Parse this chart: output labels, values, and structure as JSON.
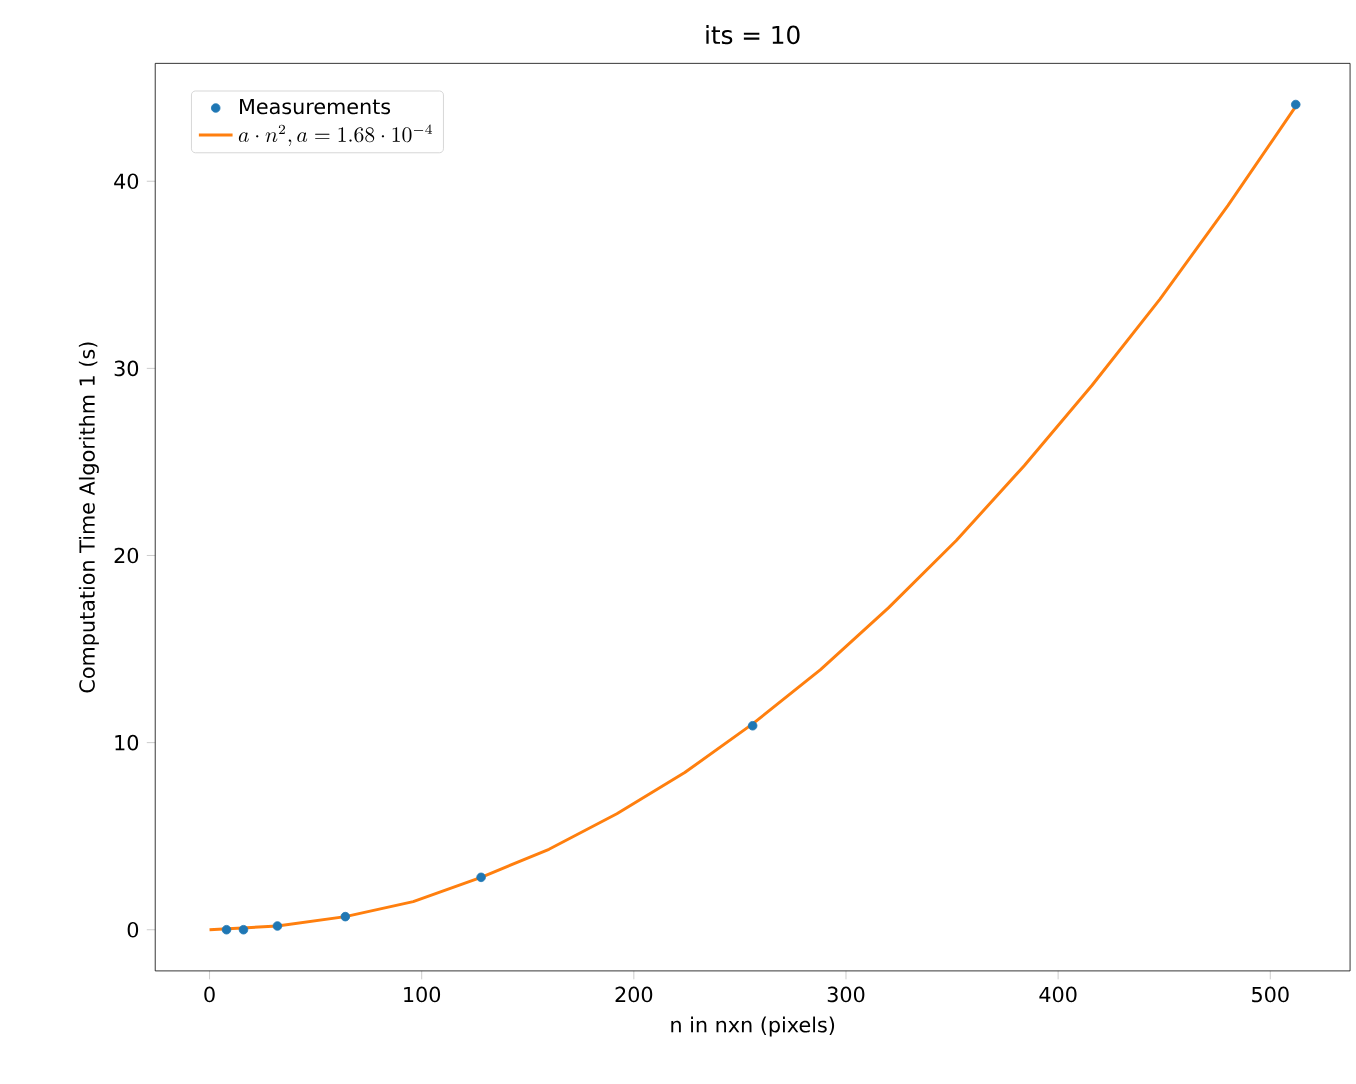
{
  "chart_data": {
    "type": "scatter",
    "title": "its = 10",
    "xlabel": "n in nxn (pixels)",
    "ylabel": "Computation Time Algorithm 1 (s)",
    "x": [
      8,
      16,
      32,
      64,
      128,
      256,
      512
    ],
    "series": [
      {
        "name": "Measurements",
        "color": "#1f77b4",
        "marker": "circle",
        "values": [
          0.0,
          0.0,
          0.2,
          0.7,
          2.8,
          10.9,
          44.1
        ]
      },
      {
        "name": "a\\cdot n^2, a = 1.68\\cdot 10^{-4}",
        "type": "line",
        "color": "#ff7f0e",
        "x": [
          0,
          32,
          64,
          96,
          128,
          160,
          192,
          224,
          256,
          288,
          320,
          352,
          384,
          416,
          448,
          480,
          512
        ],
        "values": [
          0,
          0.2,
          0.7,
          1.5,
          2.8,
          4.3,
          6.2,
          8.4,
          11.0,
          13.9,
          17.2,
          20.8,
          24.8,
          29.1,
          33.7,
          38.7,
          44.0
        ]
      }
    ],
    "xlim": [
      -25.6,
      537.6
    ],
    "ylim": [
      -2.2,
      46.3
    ],
    "xticks": [
      0,
      100,
      200,
      300,
      400,
      500
    ],
    "yticks": [
      0,
      10,
      20,
      30,
      40
    ],
    "legend": "top left",
    "grid": false
  }
}
